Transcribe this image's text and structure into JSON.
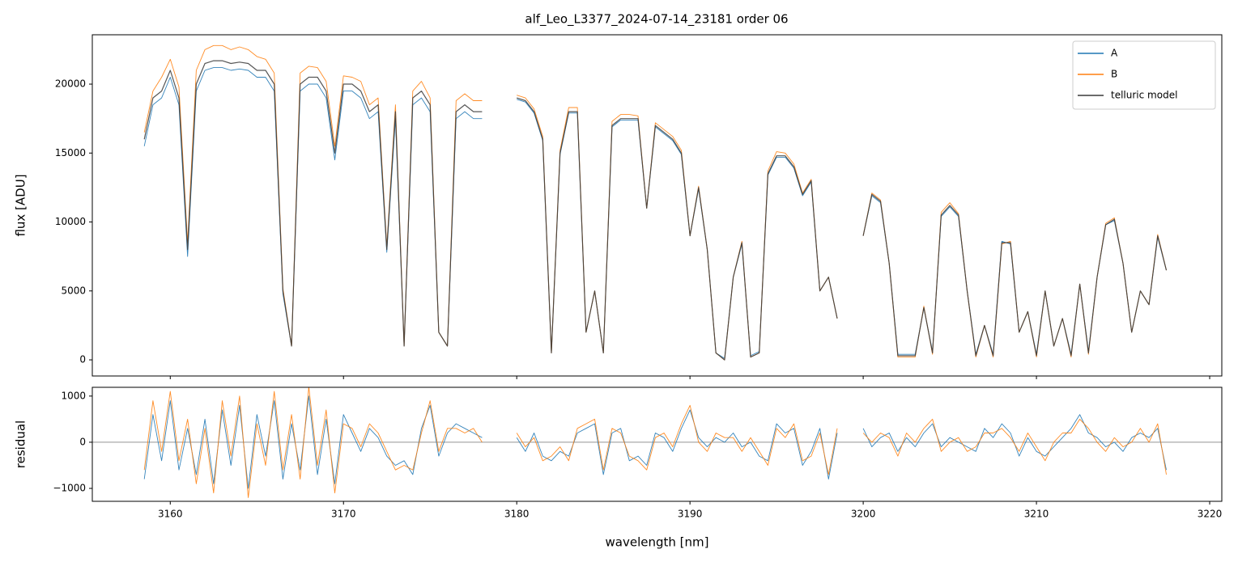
{
  "chart_data": [
    {
      "type": "line",
      "title": "alf_Leo_L3377_2024-07-14_23181  order 06",
      "ylabel": "flux [ADU]",
      "xlim": [
        3155.5,
        3220.7
      ],
      "xticks": [
        3160,
        3170,
        3180,
        3190,
        3200,
        3210,
        3220
      ],
      "ylim": [
        -1170,
        23580
      ],
      "yticks": [
        0,
        5000,
        10000,
        15000,
        20000
      ],
      "legend": "upper right",
      "x": [
        3158.5,
        3159,
        3159.5,
        3160,
        3160.5,
        3161,
        3161.5,
        3162,
        3162.5,
        3163,
        3163.5,
        3164,
        3164.5,
        3165,
        3165.5,
        3166,
        3166.5,
        3167,
        3167.5,
        3168,
        3168.5,
        3169,
        3169.5,
        3170,
        3170.5,
        3171,
        3171.5,
        3172,
        3172.5,
        3173,
        3173.5,
        3174,
        3174.5,
        3175,
        3175.5,
        3176,
        3176.5,
        3177,
        3177.5,
        3178,
        3178.5,
        3179,
        3179.5,
        3180,
        3180.5,
        3181,
        3181.5,
        3182,
        3182.5,
        3183,
        3183.5,
        3184,
        3184.5,
        3185,
        3185.5,
        3186,
        3186.5,
        3187,
        3187.5,
        3188,
        3188.5,
        3189,
        3189.5,
        3190,
        3190.5,
        3191,
        3191.5,
        3192,
        3192.5,
        3193,
        3193.5,
        3194,
        3194.5,
        3195,
        3195.5,
        3196,
        3196.5,
        3197,
        3197.5,
        3198,
        3198.5,
        3199,
        3199.5,
        3200,
        3200.5,
        3201,
        3201.5,
        3202,
        3202.5,
        3203,
        3203.5,
        3204,
        3204.5,
        3205,
        3205.5,
        3206,
        3206.5,
        3207,
        3207.5,
        3208,
        3208.5,
        3209,
        3209.5,
        3210,
        3210.5,
        3211,
        3211.5,
        3212,
        3212.5,
        3213,
        3213.5,
        3214,
        3214.5,
        3215,
        3215.5,
        3216,
        3216.5,
        3217,
        3217.5
      ],
      "series": [
        {
          "name": "A",
          "color": "#1f77b4",
          "values": [
            15500,
            18500,
            19000,
            20500,
            18500,
            7500,
            19500,
            21000,
            21200,
            21200,
            21000,
            21100,
            21000,
            20500,
            20500,
            19500,
            4800,
            1000,
            19500,
            20000,
            20000,
            19000,
            14500,
            19500,
            19500,
            19000,
            17500,
            18000,
            7800,
            17500,
            1000,
            18500,
            19000,
            18000,
            2000,
            1000,
            17500,
            18000,
            17500,
            17500,
            null,
            null,
            null,
            18900,
            18700,
            17900,
            15900,
            500,
            14900,
            17900,
            17900,
            2000,
            5000,
            500,
            16900,
            17400,
            17400,
            17400,
            11000,
            16900,
            16400,
            15900,
            14900,
            9000,
            12400,
            8000,
            500,
            100,
            6000,
            8400,
            300,
            600,
            13400,
            14700,
            14700,
            13900,
            11900,
            12900,
            5000,
            6000,
            3000,
            null,
            null,
            9000,
            11900,
            11400,
            7000,
            400,
            400,
            400,
            3800,
            600,
            10400,
            11100,
            10400,
            5000,
            400,
            2500,
            400,
            8600,
            8400,
            2000,
            3500,
            400,
            5000,
            1000,
            3000,
            400,
            5500,
            600,
            6000,
            9800,
            10100,
            7000,
            2000,
            5000,
            4000,
            8900,
            6500
          ]
        },
        {
          "name": "B",
          "color": "#ff7f0e",
          "values": [
            16500,
            19500,
            20500,
            21800,
            19800,
            8500,
            21000,
            22500,
            22800,
            22800,
            22500,
            22700,
            22500,
            22000,
            21800,
            20800,
            5200,
            1000,
            20800,
            21300,
            21200,
            20200,
            15500,
            20600,
            20500,
            20200,
            18500,
            19000,
            8200,
            18500,
            1000,
            19500,
            20200,
            19000,
            2000,
            1000,
            18800,
            19300,
            18800,
            18800,
            null,
            null,
            null,
            19200,
            19000,
            18200,
            16200,
            500,
            15200,
            18300,
            18300,
            2000,
            5000,
            500,
            17300,
            17800,
            17800,
            17700,
            11000,
            17200,
            16700,
            16200,
            15200,
            9000,
            12600,
            8000,
            500,
            0,
            6000,
            8600,
            200,
            500,
            13700,
            15100,
            15000,
            14200,
            12100,
            13100,
            5000,
            6000,
            3000,
            null,
            null,
            9000,
            12100,
            11600,
            7000,
            200,
            200,
            200,
            3900,
            400,
            10700,
            11400,
            10600,
            5000,
            200,
            2500,
            200,
            8400,
            8600,
            2000,
            3500,
            200,
            5000,
            1000,
            3000,
            200,
            5500,
            400,
            6000,
            9900,
            10300,
            7000,
            2000,
            5000,
            4000,
            9100,
            6500
          ]
        },
        {
          "name": "telluric model",
          "color": "#3a3a3a",
          "values": [
            16000,
            19000,
            19500,
            21000,
            19000,
            8000,
            20000,
            21500,
            21700,
            21700,
            21500,
            21600,
            21500,
            21000,
            21000,
            20000,
            5000,
            1000,
            20000,
            20500,
            20500,
            19500,
            15000,
            20000,
            20000,
            19500,
            18000,
            18500,
            8000,
            18000,
            1000,
            19000,
            19500,
            18500,
            2000,
            1000,
            18000,
            18500,
            18000,
            18000,
            null,
            null,
            null,
            19000,
            18800,
            18000,
            16000,
            500,
            15000,
            18000,
            18000,
            2000,
            5000,
            500,
            17000,
            17500,
            17500,
            17500,
            11000,
            17000,
            16500,
            16000,
            15000,
            9000,
            12500,
            8000,
            500,
            0,
            6000,
            8500,
            200,
            500,
            13500,
            14800,
            14800,
            14000,
            12000,
            13000,
            5000,
            6000,
            3000,
            null,
            null,
            9000,
            12000,
            11500,
            7000,
            300,
            300,
            300,
            3800,
            500,
            10500,
            11200,
            10500,
            5000,
            300,
            2500,
            300,
            8500,
            8500,
            2000,
            3500,
            300,
            5000,
            1000,
            3000,
            300,
            5500,
            500,
            6000,
            9800,
            10200,
            7000,
            2000,
            5000,
            4000,
            9000,
            6500
          ]
        }
      ]
    },
    {
      "type": "line",
      "ylabel": "residual",
      "xlabel": "wavelength [nm]",
      "hline": 0,
      "xlim": [
        3155.5,
        3220.7
      ],
      "xticks": [
        3160,
        3170,
        3180,
        3190,
        3200,
        3210,
        3220
      ],
      "ylim": [
        -1280,
        1190
      ],
      "yticks": [
        {
          "value": -1000,
          "label": "−1000"
        },
        0,
        1000
      ],
      "x": [
        3158.5,
        3159,
        3159.5,
        3160,
        3160.5,
        3161,
        3161.5,
        3162,
        3162.5,
        3163,
        3163.5,
        3164,
        3164.5,
        3165,
        3165.5,
        3166,
        3166.5,
        3167,
        3167.5,
        3168,
        3168.5,
        3169,
        3169.5,
        3170,
        3170.5,
        3171,
        3171.5,
        3172,
        3172.5,
        3173,
        3173.5,
        3174,
        3174.5,
        3175,
        3175.5,
        3176,
        3176.5,
        3177,
        3177.5,
        3178,
        3178.5,
        3179,
        3179.5,
        3180,
        3180.5,
        3181,
        3181.5,
        3182,
        3182.5,
        3183,
        3183.5,
        3184,
        3184.5,
        3185,
        3185.5,
        3186,
        3186.5,
        3187,
        3187.5,
        3188,
        3188.5,
        3189,
        3189.5,
        3190,
        3190.5,
        3191,
        3191.5,
        3192,
        3192.5,
        3193,
        3193.5,
        3194,
        3194.5,
        3195,
        3195.5,
        3196,
        3196.5,
        3197,
        3197.5,
        3198,
        3198.5,
        3199,
        3199.5,
        3200,
        3200.5,
        3201,
        3201.5,
        3202,
        3202.5,
        3203,
        3203.5,
        3204,
        3204.5,
        3205,
        3205.5,
        3206,
        3206.5,
        3207,
        3207.5,
        3208,
        3208.5,
        3209,
        3209.5,
        3210,
        3210.5,
        3211,
        3211.5,
        3212,
        3212.5,
        3213,
        3213.5,
        3214,
        3214.5,
        3215,
        3215.5,
        3216,
        3216.5,
        3217,
        3217.5
      ],
      "series": [
        {
          "name": "A",
          "color": "#1f77b4",
          "values": [
            -800,
            600,
            -400,
            900,
            -600,
            300,
            -700,
            500,
            -900,
            700,
            -500,
            800,
            -1000,
            600,
            -300,
            900,
            -800,
            400,
            -600,
            1000,
            -700,
            500,
            -900,
            600,
            200,
            -200,
            300,
            100,
            -300,
            -500,
            -400,
            -700,
            300,
            800,
            -300,
            200,
            400,
            300,
            200,
            100,
            null,
            null,
            null,
            100,
            -200,
            200,
            -300,
            -400,
            -200,
            -300,
            200,
            300,
            400,
            -700,
            200,
            300,
            -400,
            -300,
            -500,
            200,
            100,
            -200,
            300,
            700,
            100,
            -100,
            100,
            0,
            200,
            -100,
            0,
            -300,
            -400,
            400,
            200,
            300,
            -500,
            -200,
            300,
            -800,
            200,
            null,
            null,
            300,
            -100,
            100,
            200,
            -200,
            100,
            -100,
            200,
            400,
            -100,
            100,
            0,
            -100,
            -200,
            300,
            100,
            400,
            200,
            -300,
            100,
            -200,
            -300,
            -100,
            100,
            300,
            600,
            200,
            100,
            -100,
            0,
            -200,
            100,
            200,
            100,
            300,
            -600
          ]
        },
        {
          "name": "B",
          "color": "#ff7f0e",
          "values": [
            -600,
            900,
            -200,
            1100,
            -400,
            500,
            -900,
            300,
            -1100,
            900,
            -300,
            1000,
            -1200,
            400,
            -500,
            1100,
            -600,
            600,
            -800,
            1200,
            -500,
            700,
            -1100,
            400,
            300,
            -100,
            400,
            200,
            -200,
            -600,
            -500,
            -600,
            200,
            900,
            -200,
            300,
            300,
            200,
            300,
            0,
            null,
            null,
            null,
            200,
            -100,
            100,
            -400,
            -300,
            -100,
            -400,
            300,
            400,
            500,
            -600,
            300,
            200,
            -300,
            -400,
            -600,
            100,
            200,
            -100,
            400,
            800,
            0,
            -200,
            200,
            100,
            100,
            -200,
            100,
            -200,
            -500,
            300,
            100,
            400,
            -400,
            -300,
            200,
            -700,
            300,
            null,
            null,
            200,
            0,
            200,
            100,
            -300,
            200,
            0,
            300,
            500,
            -200,
            0,
            100,
            -200,
            -100,
            200,
            200,
            300,
            100,
            -200,
            200,
            -100,
            -400,
            0,
            200,
            200,
            500,
            300,
            0,
            -200,
            100,
            -100,
            0,
            300,
            0,
            400,
            -700
          ]
        }
      ]
    }
  ]
}
